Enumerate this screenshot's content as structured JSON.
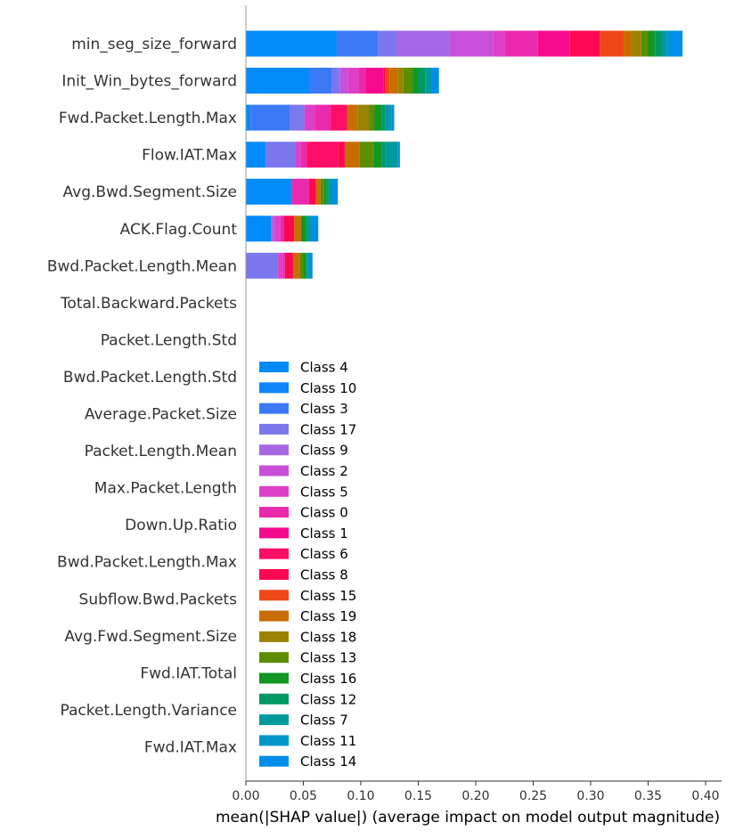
{
  "chart_data": {
    "type": "bar",
    "orientation": "horizontal",
    "stacked": true,
    "title": "",
    "xlabel": "mean(|SHAP value|) (average impact on model output magnitude)",
    "ylabel": "",
    "xlim": [
      0,
      0.41
    ],
    "x_ticks": [
      "0.00",
      "0.05",
      "0.10",
      "0.15",
      "0.20",
      "0.25",
      "0.30",
      "0.35",
      "0.40"
    ],
    "legend_position": "center",
    "grid": false,
    "categories": [
      "min_seg_size_forward",
      "Init_Win_bytes_forward",
      "Fwd.Packet.Length.Max",
      "Flow.IAT.Max",
      "Avg.Bwd.Segment.Size",
      "ACK.Flag.Count",
      "Bwd.Packet.Length.Mean",
      "Total.Backward.Packets",
      "Packet.Length.Std",
      "Bwd.Packet.Length.Std",
      "Average.Packet.Size",
      "Packet.Length.Mean",
      "Max.Packet.Length",
      "Down.Up.Ratio",
      "Bwd.Packet.Length.Max",
      "Subflow.Bwd.Packets",
      "Avg.Fwd.Segment.Size",
      "Fwd.IAT.Total",
      "Packet.Length.Variance",
      "Fwd.IAT.Max"
    ],
    "series": [
      {
        "name": "Class 4",
        "color": "#008bfb",
        "values": [
          0.079,
          0.055,
          0.004,
          0.017,
          0.04,
          0.022,
          0.0,
          0,
          0,
          0,
          0,
          0,
          0,
          0,
          0,
          0,
          0,
          0,
          0,
          0
        ]
      },
      {
        "name": "Class 10",
        "color": "#0f85fc",
        "values": [
          0.0,
          0.0,
          0.0,
          0.0,
          0.0,
          0.0,
          0.0,
          0,
          0,
          0,
          0,
          0,
          0,
          0,
          0,
          0,
          0,
          0,
          0,
          0
        ]
      },
      {
        "name": "Class 3",
        "color": "#3b79f6",
        "values": [
          0.036,
          0.02,
          0.034,
          0.0,
          0.0,
          0.0,
          0.0,
          0,
          0,
          0,
          0,
          0,
          0,
          0,
          0,
          0,
          0,
          0,
          0,
          0
        ]
      },
      {
        "name": "Class 17",
        "color": "#7b78ef",
        "values": [
          0.016,
          0.007,
          0.013,
          0.026,
          0.0,
          0.001,
          0.028,
          0,
          0,
          0,
          0,
          0,
          0,
          0,
          0,
          0,
          0,
          0,
          0,
          0
        ]
      },
      {
        "name": "Class 9",
        "color": "#a567e4",
        "values": [
          0.046,
          0.0,
          0.0,
          0.0,
          0.0,
          0.0,
          0.0,
          0,
          0,
          0,
          0,
          0,
          0,
          0,
          0,
          0,
          0,
          0,
          0,
          0
        ]
      },
      {
        "name": "Class 2",
        "color": "#c84fd7",
        "values": [
          0.038,
          0.007,
          0.0,
          0.0,
          0.0,
          0.002,
          0.0,
          0,
          0,
          0,
          0,
          0,
          0,
          0,
          0,
          0,
          0,
          0,
          0,
          0
        ]
      },
      {
        "name": "Class 5",
        "color": "#dd3fc8",
        "values": [
          0.01,
          0.009,
          0.009,
          0.005,
          0.0,
          0.005,
          0.004,
          0,
          0,
          0,
          0,
          0,
          0,
          0,
          0,
          0,
          0,
          0,
          0,
          0
        ]
      },
      {
        "name": "Class 0",
        "color": "#ea29ad",
        "values": [
          0.029,
          0.006,
          0.014,
          0.005,
          0.015,
          0.003,
          0.002,
          0,
          0,
          0,
          0,
          0,
          0,
          0,
          0,
          0,
          0,
          0,
          0,
          0
        ]
      },
      {
        "name": "Class 1",
        "color": "#f50a8e",
        "values": [
          0.028,
          0.016,
          0.0,
          0.0,
          0.0,
          0.0,
          0.0,
          0,
          0,
          0,
          0,
          0,
          0,
          0,
          0,
          0,
          0,
          0,
          0,
          0
        ]
      },
      {
        "name": "Class 6",
        "color": "#fd0e66",
        "values": [
          0.0,
          0.0,
          0.014,
          0.027,
          0.0,
          0.0,
          0.0,
          0,
          0,
          0,
          0,
          0,
          0,
          0,
          0,
          0,
          0,
          0,
          0,
          0
        ]
      },
      {
        "name": "Class 8",
        "color": "#ff0652",
        "values": [
          0.026,
          0.001,
          0.0,
          0.006,
          0.006,
          0.009,
          0.007,
          0,
          0,
          0,
          0,
          0,
          0,
          0,
          0,
          0,
          0,
          0,
          0,
          0
        ]
      },
      {
        "name": "Class 15",
        "color": "#ef4718",
        "values": [
          0.021,
          0.004,
          0.0,
          0.0,
          0.0,
          0.0,
          0.0,
          0,
          0,
          0,
          0,
          0,
          0,
          0,
          0,
          0,
          0,
          0,
          0,
          0
        ]
      },
      {
        "name": "Class 19",
        "color": "#c86d00",
        "values": [
          0.007,
          0.007,
          0.009,
          0.013,
          0.004,
          0.006,
          0.006,
          0,
          0,
          0,
          0,
          0,
          0,
          0,
          0,
          0,
          0,
          0,
          0,
          0
        ]
      },
      {
        "name": "Class 18",
        "color": "#9a8300",
        "values": [
          0.008,
          0.005,
          0.01,
          0.0,
          0.0,
          0.0,
          0.0,
          0,
          0,
          0,
          0,
          0,
          0,
          0,
          0,
          0,
          0,
          0,
          0,
          0
        ]
      },
      {
        "name": "Class 13",
        "color": "#5c8d00",
        "values": [
          0.006,
          0.008,
          0.005,
          0.012,
          0.003,
          0.0,
          0.003,
          0,
          0,
          0,
          0,
          0,
          0,
          0,
          0,
          0,
          0,
          0,
          0,
          0
        ]
      },
      {
        "name": "Class 16",
        "color": "#119722",
        "values": [
          0.006,
          0.005,
          0.006,
          0.007,
          0.002,
          0.004,
          0.002,
          0,
          0,
          0,
          0,
          0,
          0,
          0,
          0,
          0,
          0,
          0,
          0,
          0
        ]
      },
      {
        "name": "Class 12",
        "color": "#009863",
        "values": [
          0.006,
          0.006,
          0.003,
          0.003,
          0.002,
          0.002,
          0.001,
          0,
          0,
          0,
          0,
          0,
          0,
          0,
          0,
          0,
          0,
          0,
          0,
          0
        ]
      },
      {
        "name": "Class 7",
        "color": "#009a9c",
        "values": [
          0.004,
          0.006,
          0.003,
          0.011,
          0.002,
          0.003,
          0.002,
          0,
          0,
          0,
          0,
          0,
          0,
          0,
          0,
          0,
          0,
          0,
          0,
          0
        ]
      },
      {
        "name": "Class 11",
        "color": "#0097c8",
        "values": [
          0.003,
          0.0,
          0.003,
          0.0,
          0.002,
          0.0,
          0.0,
          0,
          0,
          0,
          0,
          0,
          0,
          0,
          0,
          0,
          0,
          0,
          0,
          0
        ]
      },
      {
        "name": "Class 14",
        "color": "#008dec",
        "values": [
          0.011,
          0.006,
          0.002,
          0.002,
          0.004,
          0.006,
          0.003,
          0,
          0,
          0,
          0,
          0,
          0,
          0,
          0,
          0,
          0,
          0,
          0,
          0
        ]
      }
    ]
  }
}
